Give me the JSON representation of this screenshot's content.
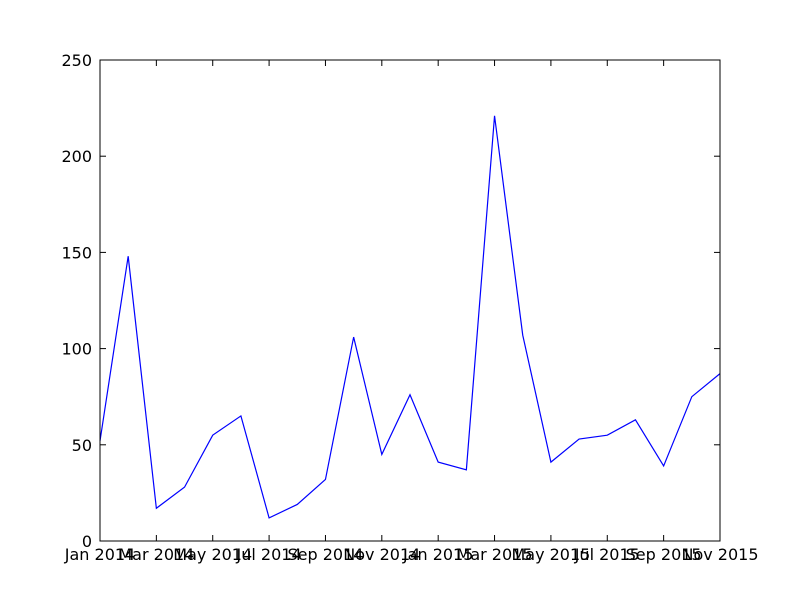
{
  "chart_data": {
    "type": "line",
    "title": "",
    "xlabel": "",
    "ylabel": "",
    "grid": false,
    "x": [
      "Jan 2014",
      "Feb 2014",
      "Mar 2014",
      "Apr 2014",
      "May 2014",
      "Jun 2014",
      "Jul 2014",
      "Aug 2014",
      "Sep 2014",
      "Oct 2014",
      "Nov 2014",
      "Dec 2014",
      "Jan 2015",
      "Feb 2015",
      "Mar 2015",
      "Apr 2015",
      "May 2015",
      "Jun 2015",
      "Jul 2015",
      "Aug 2015",
      "Sep 2015",
      "Oct 2015",
      "Nov 2015"
    ],
    "x_tick_labels": [
      "Jan 2014",
      "Mar 2014",
      "May 2014",
      "Jul 2014",
      "Sep 2014",
      "Nov 2014",
      "Jan 2015",
      "Mar 2015",
      "May 2015",
      "Jul 2015",
      "Sep 2015",
      "Nov 2015"
    ],
    "y_ticks": [
      0,
      50,
      100,
      150,
      200,
      250
    ],
    "ylim": [
      0,
      250
    ],
    "series": [
      {
        "color": "#0000ff",
        "values": [
          52,
          148,
          17,
          28,
          55,
          65,
          12,
          19,
          32,
          106,
          45,
          76,
          41,
          37,
          221,
          107,
          41,
          53,
          55,
          63,
          39,
          75,
          87
        ]
      }
    ]
  }
}
